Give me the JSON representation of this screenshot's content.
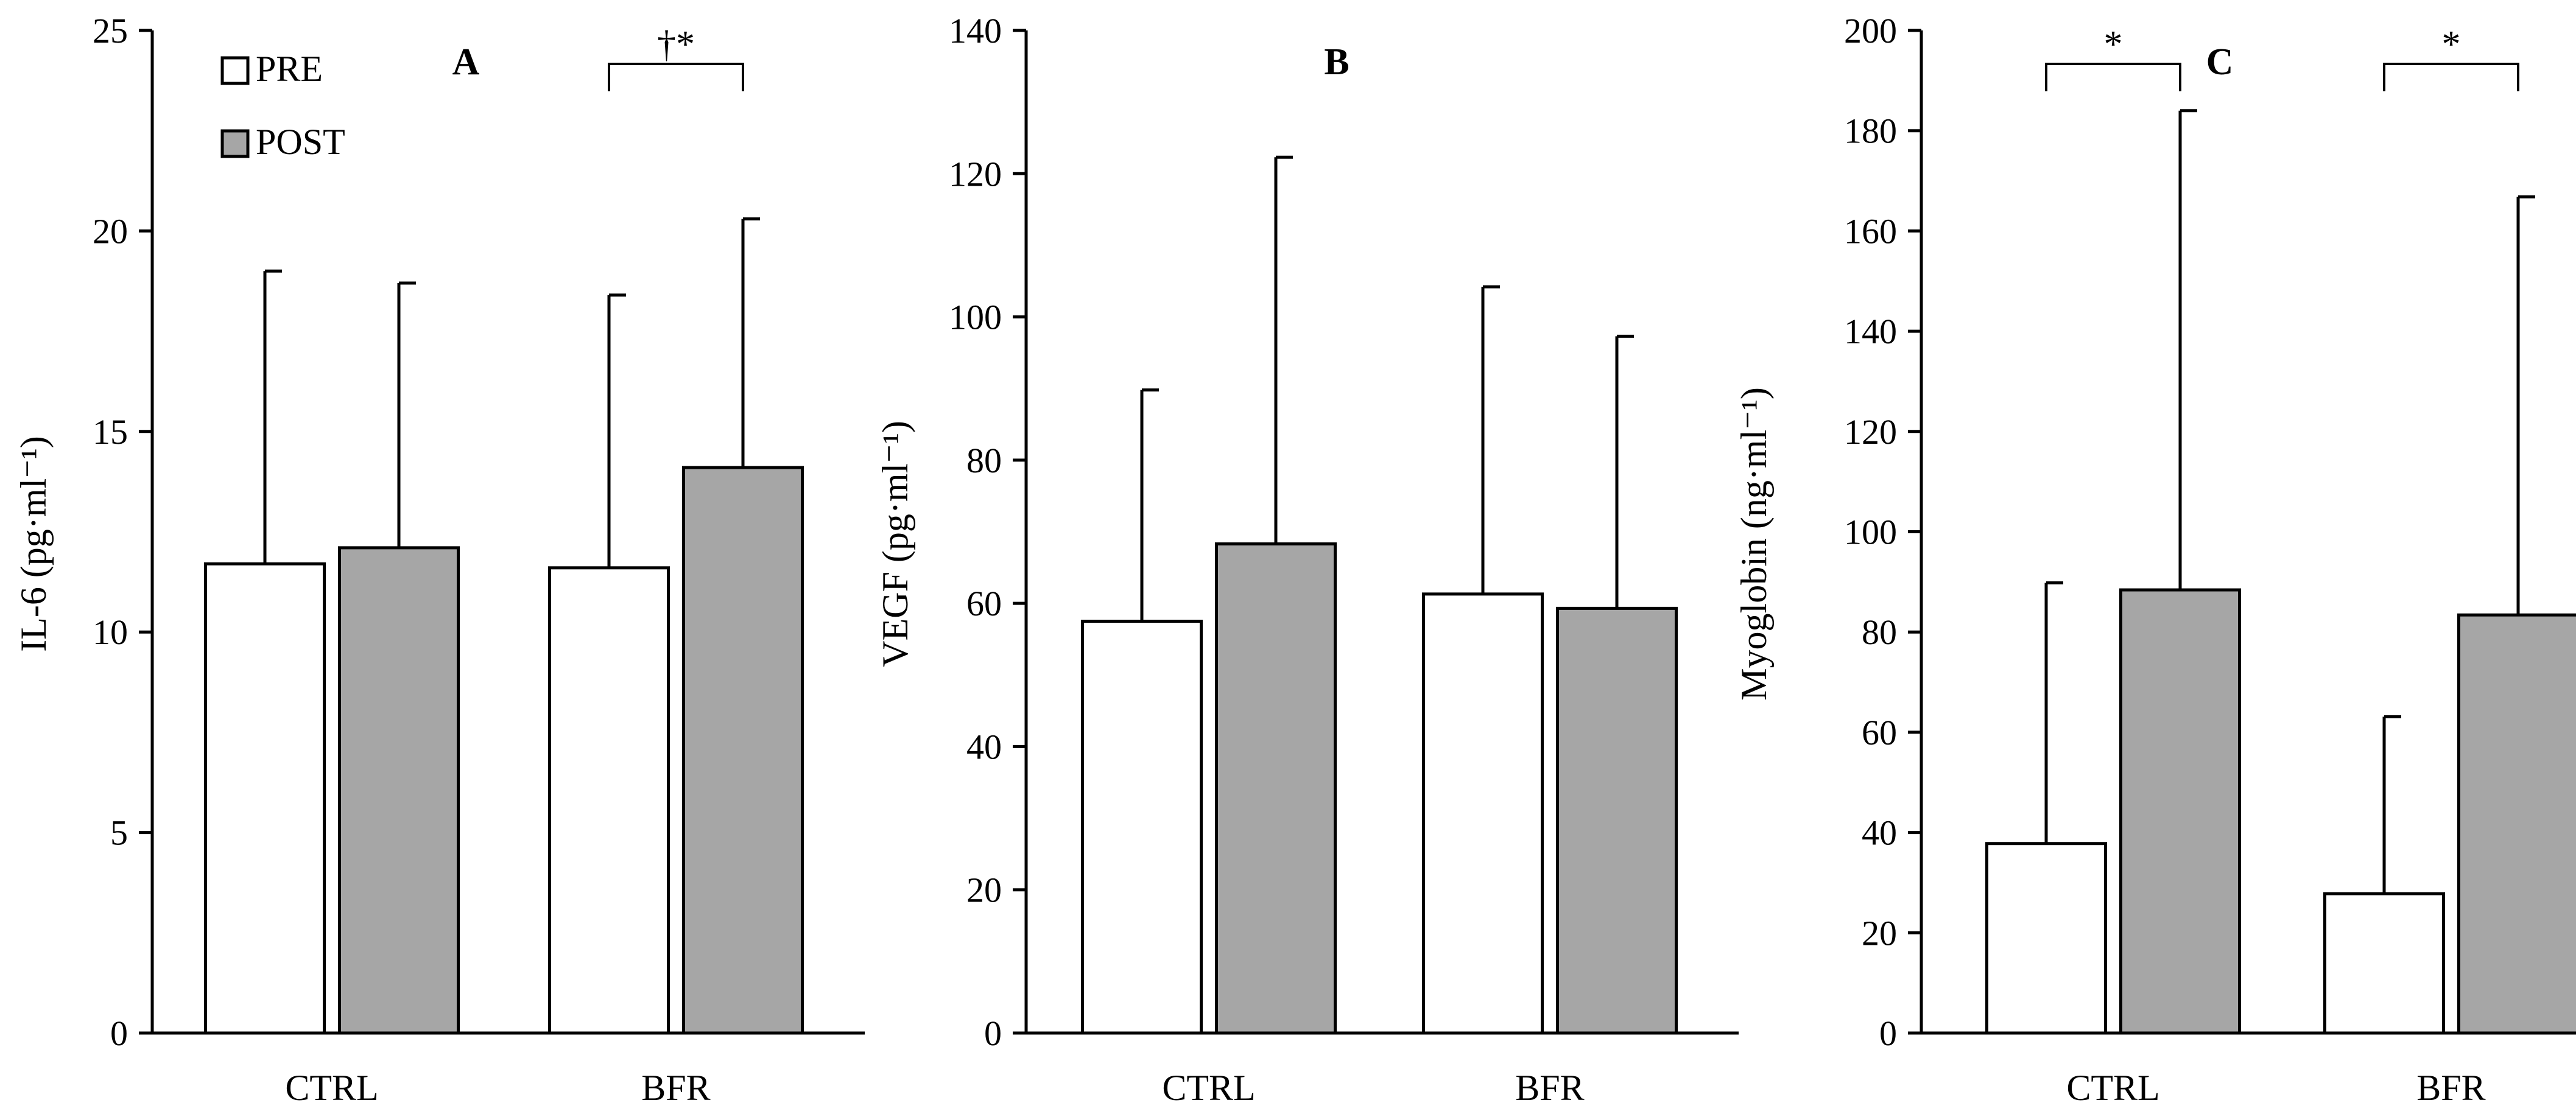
{
  "colors": {
    "pre": "#ffffff",
    "post": "#a6a6a6",
    "axis": "#000000"
  },
  "legend": [
    {
      "label": "PRE",
      "series": "pre"
    },
    {
      "label": "POST",
      "series": "post"
    }
  ],
  "chart_data": [
    {
      "type": "bar",
      "panel": "A",
      "categories": [
        "CTRL",
        "BFR"
      ],
      "ylabel": "IL-6 (pg·ml⁻¹)",
      "ylim": [
        0,
        25
      ],
      "yticks": [
        0,
        5,
        10,
        15,
        20,
        25
      ],
      "series": [
        {
          "name": "PRE",
          "values": [
            11.7,
            11.6
          ],
          "errors": [
            7.3,
            6.8
          ]
        },
        {
          "name": "POST",
          "values": [
            12.1,
            14.1
          ],
          "errors": [
            6.6,
            6.2
          ]
        }
      ],
      "annotations": [
        {
          "category": "BFR",
          "text": "†*"
        }
      ]
    },
    {
      "type": "bar",
      "panel": "B",
      "categories": [
        "CTRL",
        "BFR"
      ],
      "ylabel": "VEGF (pg·ml⁻¹)",
      "ylim": [
        0,
        140
      ],
      "yticks": [
        0,
        20,
        40,
        60,
        80,
        100,
        120,
        140
      ],
      "series": [
        {
          "name": "PRE",
          "values": [
            57.5,
            61.3
          ],
          "errors": [
            32.3,
            42.9
          ]
        },
        {
          "name": "POST",
          "values": [
            68.3,
            59.3
          ],
          "errors": [
            54.0,
            38.0
          ]
        }
      ],
      "annotations": []
    },
    {
      "type": "bar",
      "panel": "C",
      "categories": [
        "CTRL",
        "BFR"
      ],
      "ylabel": "Myoglobin (ng·ml⁻¹)",
      "ylim": [
        0,
        200
      ],
      "yticks": [
        0,
        20,
        40,
        60,
        80,
        100,
        120,
        140,
        160,
        180,
        200
      ],
      "series": [
        {
          "name": "PRE",
          "values": [
            37.8,
            27.8
          ],
          "errors": [
            52.0,
            35.3
          ]
        },
        {
          "name": "POST",
          "values": [
            88.4,
            83.4
          ],
          "errors": [
            95.6,
            83.4
          ]
        }
      ],
      "annotations": [
        {
          "category": "CTRL",
          "text": "*"
        },
        {
          "category": "BFR",
          "text": "*"
        }
      ]
    }
  ]
}
